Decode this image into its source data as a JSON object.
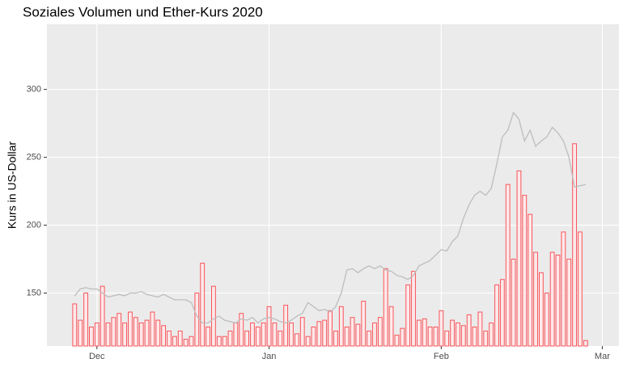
{
  "chart_data": {
    "type": "combo",
    "title": "Soziales Volumen und Ether-Kurs 2020",
    "y_label": "Kurs in US-Dollar",
    "x": [
      -4,
      -3,
      -2,
      -1,
      0,
      1,
      2,
      3,
      4,
      5,
      6,
      7,
      8,
      9,
      10,
      11,
      12,
      13,
      14,
      15,
      16,
      17,
      18,
      19,
      20,
      21,
      22,
      23,
      24,
      25,
      26,
      27,
      28,
      29,
      30,
      31,
      32,
      33,
      34,
      35,
      36,
      37,
      38,
      39,
      40,
      41,
      42,
      43,
      44,
      45,
      46,
      47,
      48,
      49,
      50,
      51,
      52,
      53,
      54,
      55,
      56,
      57,
      58,
      59,
      60,
      61,
      62,
      63,
      64,
      65,
      66,
      67,
      68,
      69,
      70,
      71,
      72,
      73,
      74,
      75,
      76,
      77,
      78,
      79,
      80,
      81,
      82,
      83,
      84,
      85,
      86,
      87,
      88
    ],
    "series": [
      {
        "type": "bar",
        "color": "#f8545a",
        "fill": "#fde9ea",
        "values": [
          142,
          130,
          150,
          125,
          128,
          155,
          128,
          132,
          135,
          128,
          136,
          132,
          128,
          130,
          136,
          130,
          126,
          122,
          118,
          122,
          116,
          118,
          150,
          172,
          125,
          155,
          118,
          118,
          122,
          128,
          135,
          122,
          128,
          125,
          128,
          140,
          128,
          122,
          141,
          128,
          120,
          132,
          118,
          125,
          129,
          130,
          137,
          122,
          140,
          125,
          132,
          127,
          144,
          122,
          128,
          132,
          168,
          140,
          119,
          124,
          156,
          166,
          130,
          131,
          125,
          125,
          137,
          122,
          130,
          128,
          126,
          134,
          125,
          136,
          122,
          128,
          156,
          160,
          230,
          175,
          240,
          222,
          208,
          180,
          165,
          150,
          180,
          178,
          195,
          175,
          260,
          195,
          115
        ]
      },
      {
        "type": "line",
        "color": "#bdbdbd",
        "values": [
          148,
          153,
          154,
          153,
          153,
          150,
          147,
          148,
          149,
          148,
          150,
          150,
          151,
          149,
          148,
          147,
          149,
          147,
          145,
          145,
          145,
          143,
          133,
          128,
          128,
          131,
          133,
          130,
          129,
          128,
          131,
          130,
          132,
          128,
          131,
          132,
          131,
          129,
          128,
          130,
          133,
          135,
          143,
          140,
          137,
          138,
          136,
          140,
          150,
          167,
          168,
          165,
          168,
          170,
          168,
          170,
          167,
          166,
          163,
          162,
          160,
          163,
          170,
          172,
          174,
          178,
          182,
          181,
          188,
          192,
          205,
          215,
          222,
          225,
          222,
          227,
          245,
          265,
          270,
          283,
          278,
          262,
          270,
          258,
          262,
          265,
          272,
          268,
          262,
          250,
          228,
          229,
          230
        ]
      }
    ],
    "xlim": [
      -9,
      94
    ],
    "xticks": [
      {
        "value": 0,
        "label": "Dec"
      },
      {
        "value": 31,
        "label": "Jan"
      },
      {
        "value": 62,
        "label": "Feb"
      },
      {
        "value": 91,
        "label": "Mar"
      }
    ],
    "ylim": [
      111,
      348
    ],
    "yticks": [
      150,
      200,
      250,
      300
    ],
    "grid": true
  }
}
